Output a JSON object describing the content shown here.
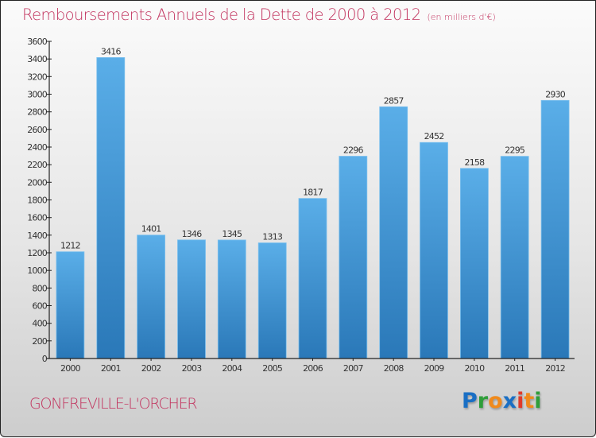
{
  "title": "Remboursements Annuels de la Dette de 2000 à 2012",
  "unit": "(en milliers d'€)",
  "city": "GONFREVILLE-L'ORCHER",
  "logo": {
    "letters": [
      {
        "ch": "P",
        "color": "#1a6fc4"
      },
      {
        "ch": "r",
        "color": "#2f9e3a"
      },
      {
        "ch": "o",
        "color": "#f08a1c"
      },
      {
        "ch": "x",
        "color": "#1a6fc4"
      },
      {
        "ch": "i",
        "color": "#e03a2a"
      },
      {
        "ch": "t",
        "color": "#f08a1c"
      },
      {
        "ch": "i",
        "color": "#2f9e3a"
      }
    ]
  },
  "colors": {
    "bar_top": "#5aaee8",
    "bar_bottom": "#2a78b8",
    "title": "#c2335e"
  },
  "chart_data": {
    "type": "bar",
    "title": "Remboursements Annuels de la Dette de 2000 à 2012",
    "subtitle": "(en milliers d'€)",
    "xlabel": "",
    "ylabel": "",
    "categories": [
      "2000",
      "2001",
      "2002",
      "2003",
      "2004",
      "2005",
      "2006",
      "2007",
      "2008",
      "2009",
      "2010",
      "2011",
      "2012"
    ],
    "values": [
      1212,
      3416,
      1401,
      1346,
      1345,
      1313,
      1817,
      2296,
      2857,
      2452,
      2158,
      2295,
      2930
    ],
    "ylim": [
      0,
      3600
    ],
    "yticks": [
      0,
      200,
      400,
      600,
      800,
      1000,
      1200,
      1400,
      1600,
      1800,
      2000,
      2200,
      2400,
      2600,
      2800,
      3000,
      3200,
      3400,
      3600
    ],
    "grid": false,
    "legend": "none"
  }
}
